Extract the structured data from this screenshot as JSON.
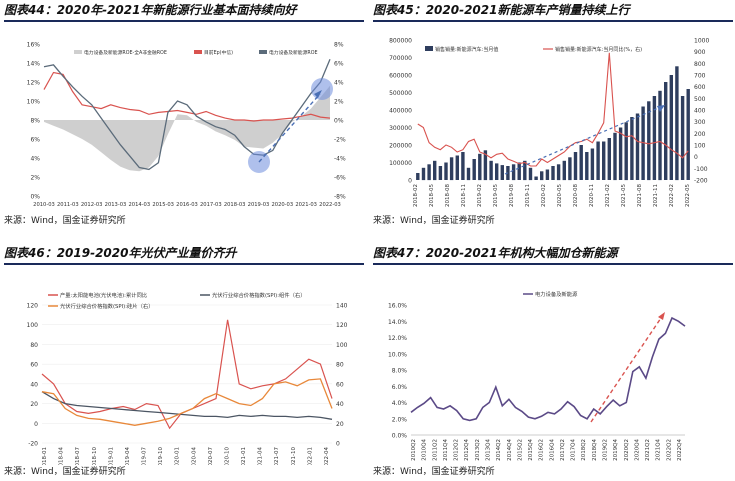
{
  "charts": [
    {
      "id": "c44",
      "title": "图表44：2020年-2021年新能源行业基本面持续向好",
      "source": "来源：Wind，国金证券研究所",
      "chart_data": {
        "type": "line",
        "legend": [
          "电力设备及新能源ROE-全A非金融ROE",
          "目前Ep(中信)",
          "电力设备及新能源ROE"
        ],
        "x_labels": [
          "2010-03",
          "2011-03",
          "2012-03",
          "2013-03",
          "2014-03",
          "2015-03",
          "2016-03",
          "2017-03",
          "2018-03",
          "2019-03",
          "2020-03",
          "2021-03",
          "2022-03"
        ],
        "ylim_left": [
          0,
          16
        ],
        "yticks_left": [
          "0%",
          "2%",
          "4%",
          "6%",
          "8%",
          "10%",
          "12%",
          "14%",
          "16%"
        ],
        "ylim_right": [
          -8,
          8
        ],
        "yticks_right": [
          "-8%",
          "-6%",
          "-4%",
          "-2%",
          "0%",
          "2%",
          "4%",
          "6%",
          "8%"
        ],
        "series_area": [
          -0.2,
          -0.6,
          -1.0,
          -1.5,
          -2.0,
          -2.6,
          -3.4,
          -4.2,
          -4.9,
          -5.3,
          -5.4,
          -5.0,
          -3.8,
          -1.5,
          0.6,
          0.5,
          -0.2,
          -0.6,
          -1.2,
          -1.6,
          -2.1,
          -2.8,
          -2.9,
          -3.0,
          -2.4,
          -1.5,
          -0.2,
          0.4,
          1.2,
          2.4,
          3.6
        ],
        "series_red": [
          11.2,
          13.0,
          12.8,
          11.0,
          9.6,
          9.4,
          9.2,
          9.6,
          9.3,
          9.1,
          9.0,
          8.6,
          8.8,
          8.9,
          9.0,
          8.8,
          8.6,
          8.9,
          8.5,
          8.2,
          8.0,
          8.0,
          7.9,
          8.0,
          8.0,
          8.1,
          8.2,
          8.4,
          8.6,
          8.3,
          8.2
        ],
        "series_gray": [
          13.6,
          13.8,
          12.6,
          11.5,
          10.5,
          9.6,
          8.2,
          6.8,
          5.4,
          4.2,
          3.0,
          2.8,
          3.5,
          8.8,
          10.0,
          9.6,
          8.4,
          7.8,
          7.3,
          7.0,
          6.4,
          5.2,
          4.4,
          4.3,
          4.8,
          6.6,
          8.0,
          9.4,
          10.8,
          12.0,
          14.4
        ]
      }
    },
    {
      "id": "c45",
      "title": "图表45：2020-2021新能源车产销量持续上行",
      "source": "来源：Wind，国金证券研究所",
      "chart_data": {
        "type": "bar",
        "legend": [
          "销售销量:新能源汽车:当月值",
          "销售销量:新能源汽车:当月同比(%，右)"
        ],
        "x_labels": [
          "2018-02",
          "2018-05",
          "2018-08",
          "2018-11",
          "2019-02",
          "2019-05",
          "2019-08",
          "2019-11",
          "2020-02",
          "2020-05",
          "2020-08",
          "2020-11",
          "2021-02",
          "2021-05",
          "2021-08",
          "2021-11",
          "2022-02",
          "2022-05"
        ],
        "ylim_left": [
          0,
          800000
        ],
        "yticks_left": [
          "0",
          "100000",
          "200000",
          "300000",
          "400000",
          "500000",
          "600000",
          "700000",
          "800000"
        ],
        "ylim_right": [
          -200,
          1000
        ],
        "yticks_right": [
          "-200",
          "-100",
          "0",
          "100",
          "200",
          "300",
          "400",
          "500",
          "600",
          "700",
          "800",
          "900",
          "1000"
        ],
        "bars": [
          40000,
          70000,
          90000,
          110000,
          80000,
          100000,
          130000,
          140000,
          160000,
          70000,
          120000,
          150000,
          170000,
          110000,
          95000,
          85000,
          80000,
          90000,
          100000,
          110000,
          70000,
          20000,
          50000,
          60000,
          80000,
          90000,
          110000,
          130000,
          160000,
          200000,
          160000,
          180000,
          220000,
          220000,
          240000,
          270000,
          300000,
          330000,
          360000,
          380000,
          420000,
          450000,
          480000,
          510000,
          560000,
          600000,
          650000,
          480000,
          520000
        ],
        "line": [
          280,
          250,
          120,
          80,
          60,
          100,
          80,
          40,
          60,
          130,
          150,
          40,
          20,
          -10,
          20,
          30,
          -20,
          -40,
          -60,
          -50,
          -80,
          -80,
          -20,
          -50,
          -20,
          10,
          40,
          90,
          120,
          130,
          150,
          120,
          200,
          290,
          890,
          220,
          200,
          170,
          180,
          130,
          120,
          110,
          120,
          130,
          100,
          60,
          30,
          -10,
          50
        ]
      }
    },
    {
      "id": "c46",
      "title": "图表46：2019-2020年光伏产业量价齐升",
      "source": "来源：Wind，国金证券研究所",
      "chart_data": {
        "type": "line",
        "legend": [
          "产量:太阳能电池(光伏电池):累计同比",
          "光伏行业综合价格指数(SPI):组件（右）",
          "光伏行业综合价格指数(SPI):硅片（右）"
        ],
        "x_labels": [
          "2018-01",
          "2018-04",
          "2018-07",
          "2018-10",
          "2019-01",
          "2019-04",
          "2019-07",
          "2019-10",
          "2020-01",
          "2020-04",
          "2020-07",
          "2020-10",
          "2021-01",
          "2021-04",
          "2021-07",
          "2021-10",
          "2022-01",
          "2022-04"
        ],
        "ylim_left": [
          -20,
          120
        ],
        "yticks_left": [
          "-20",
          "0",
          "20",
          "40",
          "60",
          "80",
          "100",
          "120"
        ],
        "ylim_right": [
          0,
          140
        ],
        "yticks_right": [
          "0",
          "20",
          "40",
          "60",
          "80",
          "100",
          "120",
          "140"
        ],
        "series_red": [
          50,
          40,
          20,
          12,
          10,
          12,
          15,
          17,
          14,
          20,
          18,
          -5,
          10,
          15,
          20,
          25,
          105,
          40,
          35,
          38,
          40,
          45,
          55,
          65,
          60,
          25
        ],
        "series_gray": [
          52,
          45,
          40,
          38,
          37,
          36,
          35,
          34,
          33,
          32,
          31,
          30,
          29,
          28,
          27,
          27,
          26,
          28,
          27,
          28,
          27,
          27,
          26,
          27,
          26,
          24
        ],
        "series_orange": [
          52,
          50,
          35,
          28,
          25,
          24,
          22,
          20,
          18,
          20,
          22,
          25,
          30,
          35,
          45,
          50,
          45,
          40,
          38,
          45,
          60,
          62,
          58,
          64,
          65,
          35
        ]
      }
    },
    {
      "id": "c47",
      "title": "图表47：2020-2021年机构大幅加仓新能源",
      "source": "来源：Wind，国金证券研究所",
      "chart_data": {
        "type": "line",
        "legend": [
          "电力设备及新能源"
        ],
        "x_labels": [
          "2010Q2",
          "2010Q4",
          "2011Q2",
          "2011Q4",
          "2012Q2",
          "2012Q4",
          "2013Q2",
          "2013Q4",
          "2014Q2",
          "2014Q4",
          "2015Q2",
          "2015Q4",
          "2016Q2",
          "2016Q4",
          "2017Q2",
          "2017Q4",
          "2018Q2",
          "2018Q4",
          "2019Q2",
          "2019Q4",
          "2020Q2",
          "2020Q4",
          "2021Q2",
          "2021Q4",
          "2022Q2",
          "2022Q4"
        ],
        "ylim": [
          0,
          16
        ],
        "yticks": [
          "0.0%",
          "2.0%",
          "4.0%",
          "6.0%",
          "8.0%",
          "10.0%",
          "12.0%",
          "14.0%",
          "16.0%"
        ],
        "series": [
          2.8,
          3.4,
          3.9,
          4.6,
          3.4,
          3.2,
          3.6,
          3.0,
          2.0,
          1.8,
          2.0,
          3.4,
          4.0,
          5.9,
          3.6,
          4.4,
          3.4,
          2.9,
          2.2,
          2.0,
          2.3,
          2.8,
          2.6,
          3.2,
          4.1,
          3.5,
          2.4,
          2.0,
          3.2,
          2.6,
          3.5,
          4.3,
          3.6,
          4.0,
          7.8,
          8.4,
          7.0,
          9.6,
          11.8,
          12.5,
          14.4,
          14.0,
          13.4
        ],
        "trend_label": ""
      }
    }
  ]
}
